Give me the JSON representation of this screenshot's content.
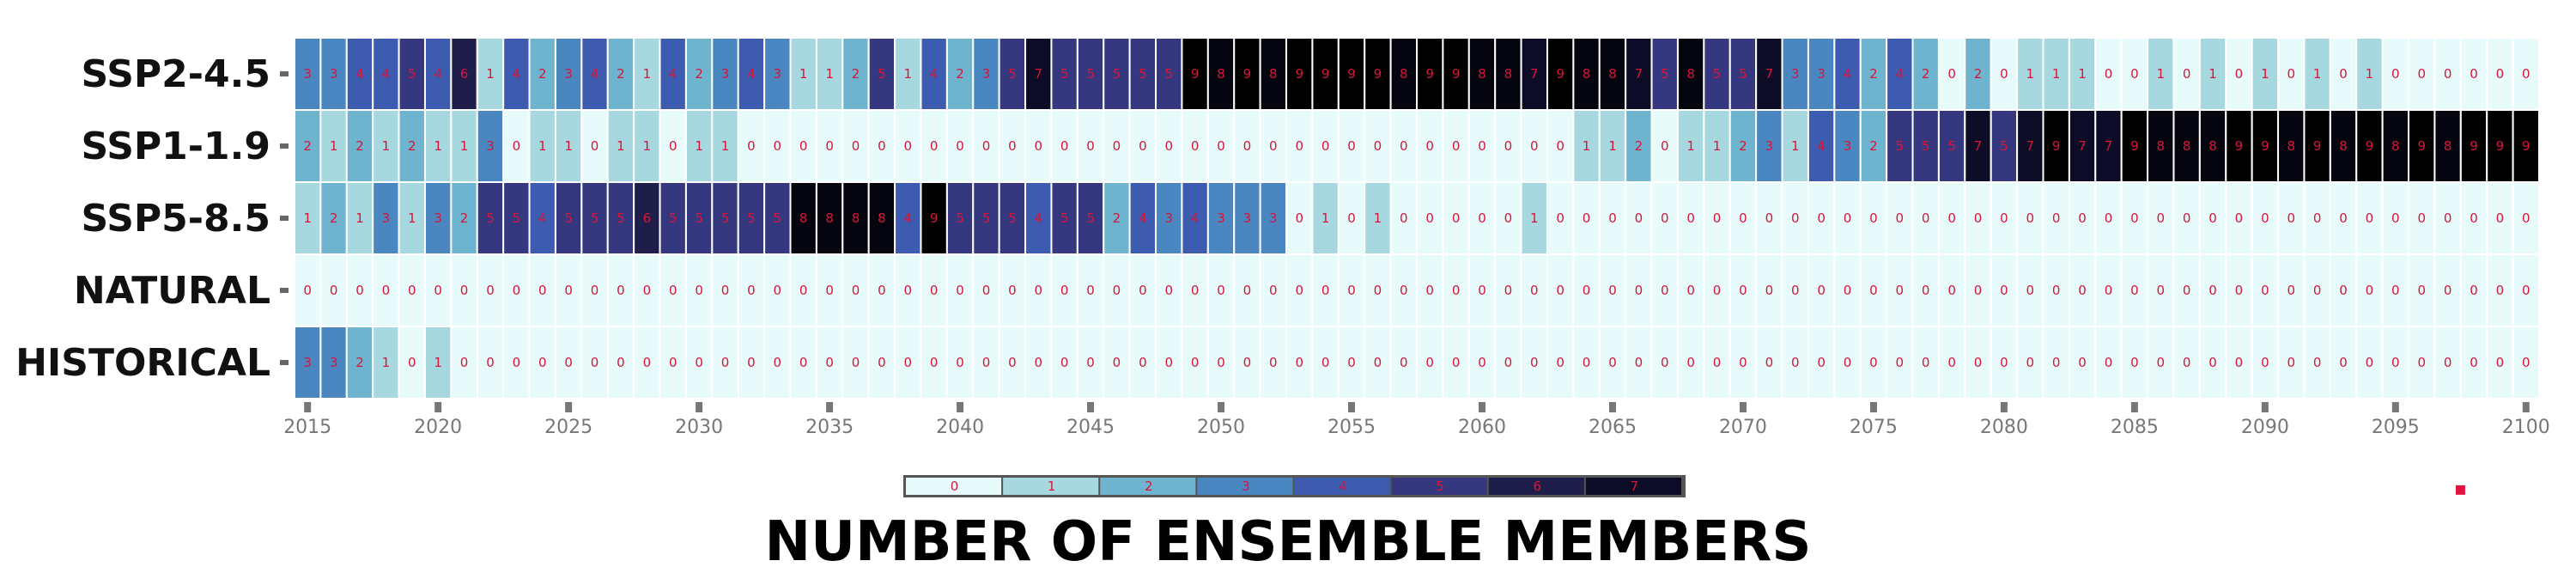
{
  "chart_data": {
    "type": "heatmap",
    "title": "NUMBER OF ENSEMBLE MEMBERS",
    "x_start": 2015,
    "x_end": 2100,
    "xticks": [
      2015,
      2020,
      2025,
      2030,
      2035,
      2040,
      2045,
      2050,
      2055,
      2060,
      2065,
      2070,
      2075,
      2080,
      2085,
      2090,
      2095,
      2100
    ],
    "rows": [
      "SSP2-4.5",
      "SSP1-1.9",
      "SSP5-8.5",
      "NATURAL",
      "HISTORICAL"
    ],
    "values": [
      [
        3,
        3,
        4,
        4,
        5,
        4,
        6,
        1,
        4,
        2,
        3,
        4,
        2,
        1,
        4,
        2,
        3,
        4,
        3,
        1,
        1,
        2,
        5,
        1,
        4,
        2,
        3,
        5,
        7,
        5,
        5,
        5,
        5,
        5,
        9,
        8,
        9,
        8,
        9,
        9,
        9,
        9,
        8,
        9,
        9,
        8,
        8,
        7,
        9,
        8,
        8,
        7,
        5,
        8,
        5,
        5,
        7,
        3,
        3,
        4,
        2,
        4,
        2,
        0,
        2,
        0,
        1,
        1,
        1,
        0,
        0,
        1,
        0,
        1,
        0,
        1,
        0,
        1,
        0,
        1,
        0,
        0,
        0,
        0,
        0,
        0
      ],
      [
        2,
        1,
        2,
        1,
        2,
        1,
        1,
        3,
        0,
        1,
        1,
        0,
        1,
        1,
        0,
        1,
        1,
        0,
        0,
        0,
        0,
        0,
        0,
        0,
        0,
        0,
        0,
        0,
        0,
        0,
        0,
        0,
        0,
        0,
        0,
        0,
        0,
        0,
        0,
        0,
        0,
        0,
        0,
        0,
        0,
        0,
        0,
        0,
        0,
        1,
        1,
        2,
        0,
        1,
        1,
        2,
        3,
        1,
        4,
        3,
        2,
        5,
        5,
        5,
        7,
        5,
        7,
        9,
        7,
        7,
        9,
        8,
        8,
        8,
        9,
        9,
        8,
        9,
        8,
        9,
        8,
        9,
        8,
        9,
        9,
        9
      ],
      [
        1,
        2,
        1,
        3,
        1,
        3,
        2,
        5,
        5,
        4,
        5,
        5,
        5,
        6,
        5,
        5,
        5,
        5,
        5,
        8,
        8,
        8,
        8,
        4,
        9,
        5,
        5,
        5,
        4,
        5,
        5,
        2,
        4,
        3,
        4,
        3,
        3,
        3,
        0,
        1,
        0,
        1,
        0,
        0,
        0,
        0,
        0,
        1,
        0,
        0,
        0,
        0,
        0,
        0,
        0,
        0,
        0,
        0,
        0,
        0,
        0,
        0,
        0,
        0,
        0,
        0,
        0,
        0,
        0,
        0,
        0,
        0,
        0,
        0,
        0,
        0,
        0,
        0,
        0,
        0,
        0,
        0,
        0,
        0,
        0,
        0
      ],
      [
        0,
        0,
        0,
        0,
        0,
        0,
        0,
        0,
        0,
        0,
        0,
        0,
        0,
        0,
        0,
        0,
        0,
        0,
        0,
        0,
        0,
        0,
        0,
        0,
        0,
        0,
        0,
        0,
        0,
        0,
        0,
        0,
        0,
        0,
        0,
        0,
        0,
        0,
        0,
        0,
        0,
        0,
        0,
        0,
        0,
        0,
        0,
        0,
        0,
        0,
        0,
        0,
        0,
        0,
        0,
        0,
        0,
        0,
        0,
        0,
        0,
        0,
        0,
        0,
        0,
        0,
        0,
        0,
        0,
        0,
        0,
        0,
        0,
        0,
        0,
        0,
        0,
        0,
        0,
        0,
        0,
        0,
        0,
        0,
        0,
        0
      ],
      [
        3,
        3,
        2,
        1,
        0,
        1,
        0,
        0,
        0,
        0,
        0,
        0,
        0,
        0,
        0,
        0,
        0,
        0,
        0,
        0,
        0,
        0,
        0,
        0,
        0,
        0,
        0,
        0,
        0,
        0,
        0,
        0,
        0,
        0,
        0,
        0,
        0,
        0,
        0,
        0,
        0,
        0,
        0,
        0,
        0,
        0,
        0,
        0,
        0,
        0,
        0,
        0,
        0,
        0,
        0,
        0,
        0,
        0,
        0,
        0,
        0,
        0,
        0,
        0,
        0,
        0,
        0,
        0,
        0,
        0,
        0,
        0,
        0,
        0,
        0,
        0,
        0,
        0,
        0,
        0,
        0,
        0,
        0,
        0,
        0,
        0
      ]
    ],
    "colorbar_labels": [
      "0",
      "1",
      "2",
      "3",
      "4",
      "5",
      "6",
      "7"
    ],
    "colorscale": [
      "#e8fbfb",
      "#a8d8df",
      "#6eb4cf",
      "#4a86c0",
      "#3d5cb0",
      "#35387f",
      "#1f1e4a",
      "#0c0c26",
      "#05050f",
      "#000000"
    ],
    "text_color": "#d9143a",
    "legend_marker": "▪"
  }
}
